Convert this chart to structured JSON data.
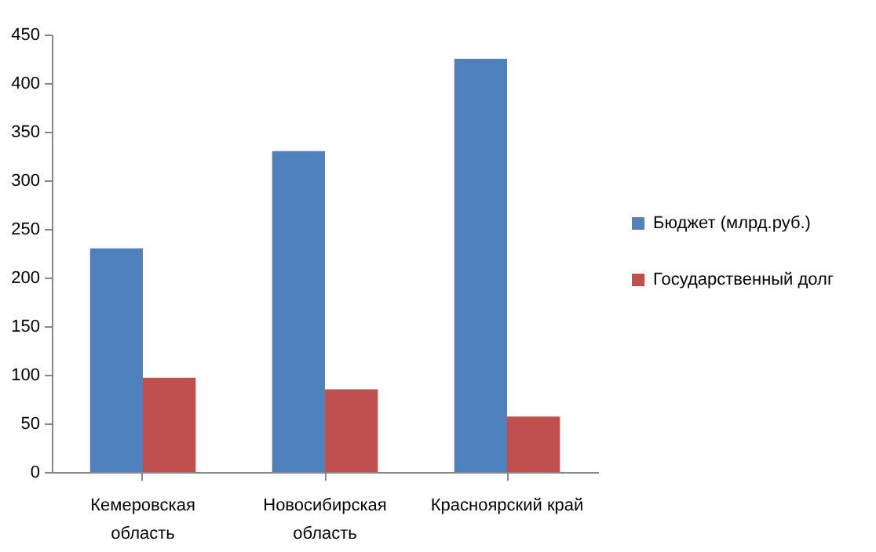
{
  "chart_data": {
    "type": "bar",
    "categories": [
      "Кемеровская область",
      "Новосибирская область",
      "Красноярский край"
    ],
    "series": [
      {
        "name": "Бюджет (млрд.руб.)",
        "color": "#4f81bd",
        "values": [
          230,
          330,
          425
        ]
      },
      {
        "name": "Государственный долг",
        "color": "#c0504d",
        "values": [
          97,
          85,
          57
        ]
      }
    ],
    "ylim": [
      0,
      450
    ],
    "yticks": [
      0,
      50,
      100,
      150,
      200,
      250,
      300,
      350,
      400,
      450
    ],
    "legend": "right"
  }
}
